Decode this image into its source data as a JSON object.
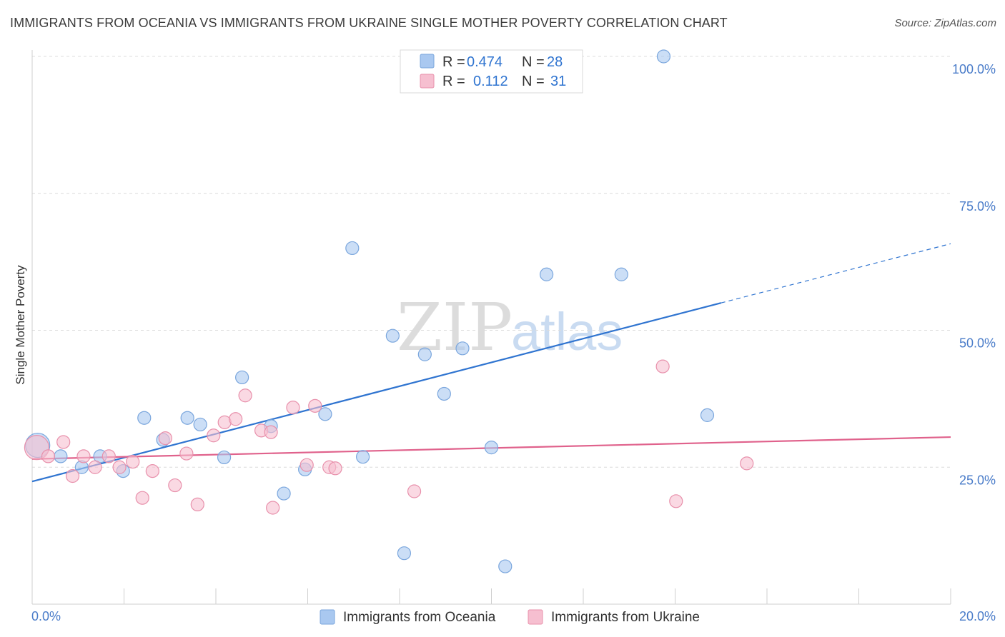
{
  "chart_data": {
    "type": "scatter",
    "title": "IMMIGRANTS FROM OCEANIA VS IMMIGRANTS FROM UKRAINE SINGLE MOTHER POVERTY CORRELATION CHART",
    "source": "Source: ZipAtlas.com",
    "ylabel": "Single Mother Poverty",
    "xlabel": "",
    "xlim": [
      0,
      20
    ],
    "ylim": [
      0,
      105
    ],
    "x_tick_labels": [
      "0.0%",
      "20.0%"
    ],
    "y_ticks": [
      25,
      50,
      75,
      100
    ],
    "y_tick_labels": [
      "25.0%",
      "50.0%",
      "75.0%",
      "100.0%"
    ],
    "grid": true,
    "legend_position": "top-center",
    "stats": [
      {
        "r_label": "R =",
        "r_value": "0.474",
        "n_label": "N =",
        "n_value": "28"
      },
      {
        "r_label": "R =",
        "r_value": "0.112",
        "n_label": "N =",
        "n_value": "31"
      }
    ],
    "watermark": {
      "zip": "ZIP",
      "atlas": "atlas"
    },
    "series": [
      {
        "name": "Immigrants from Oceania",
        "color": "#a9c8f0",
        "stroke": "#7aa6dd",
        "line_color": "#2f74d0",
        "trend": {
          "x0": 0,
          "y0": 22.4,
          "x1": 15.0,
          "y1": 55.0,
          "dash_to": 20.0,
          "dash_y": 65.8
        },
        "points": [
          {
            "x": 0.12,
            "y": 29.0,
            "big": true
          },
          {
            "x": 0.62,
            "y": 27.0
          },
          {
            "x": 1.08,
            "y": 25.0
          },
          {
            "x": 1.48,
            "y": 27.0
          },
          {
            "x": 1.98,
            "y": 24.3
          },
          {
            "x": 2.44,
            "y": 34.0
          },
          {
            "x": 2.85,
            "y": 30.0
          },
          {
            "x": 3.38,
            "y": 34.0
          },
          {
            "x": 3.66,
            "y": 32.8
          },
          {
            "x": 4.18,
            "y": 26.8
          },
          {
            "x": 4.57,
            "y": 41.4
          },
          {
            "x": 5.2,
            "y": 32.5
          },
          {
            "x": 5.48,
            "y": 20.2
          },
          {
            "x": 5.94,
            "y": 24.6
          },
          {
            "x": 6.38,
            "y": 34.7
          },
          {
            "x": 6.97,
            "y": 65.0
          },
          {
            "x": 7.2,
            "y": 26.9
          },
          {
            "x": 7.85,
            "y": 49.0
          },
          {
            "x": 8.1,
            "y": 9.3
          },
          {
            "x": 8.55,
            "y": 45.6
          },
          {
            "x": 8.97,
            "y": 38.4
          },
          {
            "x": 9.37,
            "y": 46.7
          },
          {
            "x": 10.0,
            "y": 28.6
          },
          {
            "x": 10.3,
            "y": 6.9
          },
          {
            "x": 11.2,
            "y": 60.2
          },
          {
            "x": 12.83,
            "y": 60.2
          },
          {
            "x": 13.75,
            "y": 100.0
          },
          {
            "x": 14.7,
            "y": 34.5
          }
        ]
      },
      {
        "name": "Immigrants from Ukraine",
        "color": "#f6bfd0",
        "stroke": "#e890ab",
        "line_color": "#e0628c",
        "trend": {
          "x0": 0,
          "y0": 26.5,
          "x1": 20.0,
          "y1": 30.5
        },
        "points": [
          {
            "x": 0.1,
            "y": 28.6,
            "big": true
          },
          {
            "x": 0.35,
            "y": 27.0
          },
          {
            "x": 0.68,
            "y": 29.6
          },
          {
            "x": 0.88,
            "y": 23.4
          },
          {
            "x": 1.12,
            "y": 27.0
          },
          {
            "x": 1.37,
            "y": 25.0
          },
          {
            "x": 1.67,
            "y": 27.0
          },
          {
            "x": 1.9,
            "y": 25.0
          },
          {
            "x": 2.19,
            "y": 26.0
          },
          {
            "x": 2.4,
            "y": 19.4
          },
          {
            "x": 2.62,
            "y": 24.3
          },
          {
            "x": 2.9,
            "y": 30.3
          },
          {
            "x": 3.11,
            "y": 21.7
          },
          {
            "x": 3.36,
            "y": 27.5
          },
          {
            "x": 3.6,
            "y": 18.2
          },
          {
            "x": 3.95,
            "y": 30.8
          },
          {
            "x": 4.19,
            "y": 33.2
          },
          {
            "x": 4.43,
            "y": 33.8
          },
          {
            "x": 4.64,
            "y": 38.1
          },
          {
            "x": 4.99,
            "y": 31.7
          },
          {
            "x": 5.2,
            "y": 31.4
          },
          {
            "x": 5.24,
            "y": 17.6
          },
          {
            "x": 5.68,
            "y": 35.9
          },
          {
            "x": 5.98,
            "y": 25.4
          },
          {
            "x": 6.16,
            "y": 36.2
          },
          {
            "x": 6.47,
            "y": 25.0
          },
          {
            "x": 6.6,
            "y": 24.8
          },
          {
            "x": 8.32,
            "y": 20.6
          },
          {
            "x": 13.73,
            "y": 43.4
          },
          {
            "x": 14.02,
            "y": 18.8
          },
          {
            "x": 15.56,
            "y": 25.7
          }
        ]
      }
    ]
  }
}
